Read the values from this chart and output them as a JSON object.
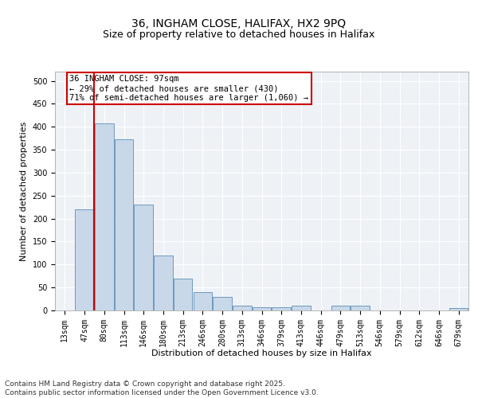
{
  "title1": "36, INGHAM CLOSE, HALIFAX, HX2 9PQ",
  "title2": "Size of property relative to detached houses in Halifax",
  "xlabel": "Distribution of detached houses by size in Halifax",
  "ylabel": "Number of detached properties",
  "categories": [
    "13sqm",
    "47sqm",
    "80sqm",
    "113sqm",
    "146sqm",
    "180sqm",
    "213sqm",
    "246sqm",
    "280sqm",
    "313sqm",
    "346sqm",
    "379sqm",
    "413sqm",
    "446sqm",
    "479sqm",
    "513sqm",
    "546sqm",
    "579sqm",
    "612sqm",
    "646sqm",
    "679sqm"
  ],
  "values": [
    0,
    220,
    407,
    372,
    230,
    120,
    70,
    40,
    30,
    10,
    7,
    7,
    10,
    0,
    10,
    10,
    0,
    0,
    0,
    0,
    5
  ],
  "bar_color": "#c8d8e8",
  "bar_edge_color": "#5b8db8",
  "vline_color": "#cc0000",
  "annotation_text": "36 INGHAM CLOSE: 97sqm\n← 29% of detached houses are smaller (430)\n71% of semi-detached houses are larger (1,060) →",
  "annotation_box_color": "#ffffff",
  "annotation_box_edge": "#cc0000",
  "background_color": "#eef2f7",
  "grid_color": "#ffffff",
  "ylim": [
    0,
    520
  ],
  "yticks": [
    0,
    50,
    100,
    150,
    200,
    250,
    300,
    350,
    400,
    450,
    500
  ],
  "footer_text": "Contains HM Land Registry data © Crown copyright and database right 2025.\nContains public sector information licensed under the Open Government Licence v3.0.",
  "title_fontsize": 10,
  "subtitle_fontsize": 9,
  "axis_label_fontsize": 8,
  "tick_fontsize": 7,
  "annotation_fontsize": 7.5,
  "footer_fontsize": 6.5
}
